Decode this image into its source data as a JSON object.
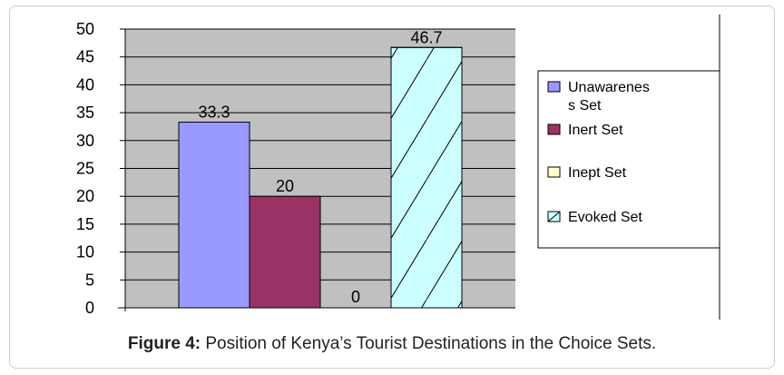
{
  "chart_data": {
    "type": "bar",
    "title": "",
    "xlabel": "",
    "ylabel": "",
    "ylim": [
      0,
      50
    ],
    "yticks": [
      0,
      5,
      10,
      15,
      20,
      25,
      30,
      35,
      40,
      45,
      50
    ],
    "grid": true,
    "legend_position": "right",
    "series": [
      {
        "name": "Unawareness Set",
        "legend_lines": [
          "Unawarenes",
          "s Set"
        ],
        "value": 33.3,
        "label": "33.3",
        "color": "#9999ff",
        "pattern": "none"
      },
      {
        "name": "Inert Set",
        "legend_lines": [
          "Inert Set"
        ],
        "value": 20,
        "label": "20",
        "color": "#993366",
        "pattern": "none"
      },
      {
        "name": "Inept Set",
        "legend_lines": [
          "Inept Set"
        ],
        "value": 0,
        "label": "0",
        "color": "#ffffcc",
        "pattern": "none"
      },
      {
        "name": "Evoked Set",
        "legend_lines": [
          "Evoked Set"
        ],
        "value": 46.7,
        "label": "46.7",
        "color": "#ccffff",
        "pattern": "diagonal"
      }
    ],
    "colors": {
      "plot_background": "#c0c0c0",
      "gridline": "#000000"
    }
  },
  "caption": {
    "label": "Figure 4:",
    "text": " Position of Kenya’s Tourist Destinations in the Choice Sets."
  }
}
